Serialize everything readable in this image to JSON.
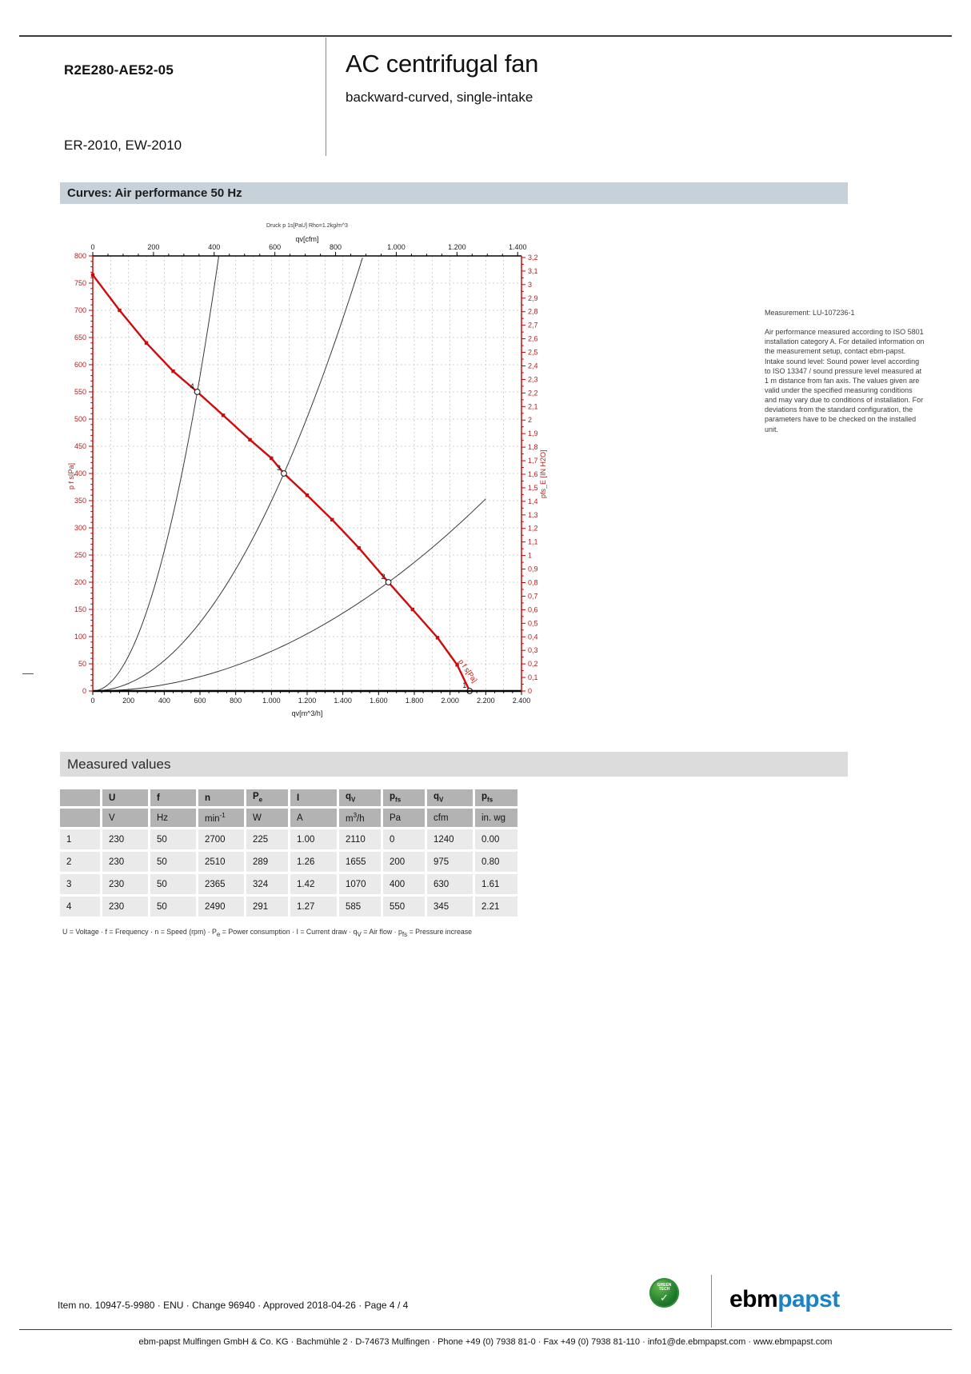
{
  "header": {
    "model": "R2E280-AE52-05",
    "title": "AC centrifugal fan",
    "subtitle": "backward-curved, single-intake",
    "series": "ER-2010, EW-2010"
  },
  "sections": {
    "curves_title": "Curves: Air performance 50 Hz",
    "measured_title": "Measured values"
  },
  "chart_data": {
    "type": "line",
    "title": "Druck p 1s[PaU]  Rho=1.2kg/m^3",
    "top_axis": {
      "label": "qv[cfm]",
      "min": 0,
      "max": 1400,
      "tick_step": 200,
      "minor_step": 50,
      "cfm_to_m3h": 1.699
    },
    "bottom_axis": {
      "label": "qv[m^3/h]",
      "min": 0,
      "max": 2400,
      "tick_step": 200,
      "minor_step": 50
    },
    "left_axis": {
      "label": "p f s[Pa]",
      "min": 0,
      "max": 800,
      "tick_step": 50,
      "minor_step": 10
    },
    "right_axis": {
      "label": "pfs_E [IN H2O]",
      "min": 0,
      "max": 3.2,
      "tick_step": 0.1,
      "minor_step": 0.05,
      "pa_per_unit": 249.089
    },
    "grid": {
      "x_step": 100,
      "y_step": 50,
      "style": "dashed"
    },
    "fan_curve": {
      "label": "p f s[Pa]",
      "color": "#cf0a0a",
      "points": [
        [
          0,
          765
        ],
        [
          150,
          700
        ],
        [
          300,
          640
        ],
        [
          450,
          588
        ],
        [
          585,
          550
        ],
        [
          730,
          507
        ],
        [
          880,
          462
        ],
        [
          1000,
          428
        ],
        [
          1070,
          400
        ],
        [
          1200,
          360
        ],
        [
          1340,
          315
        ],
        [
          1490,
          263
        ],
        [
          1655,
          200
        ],
        [
          1790,
          150
        ],
        [
          1930,
          98
        ],
        [
          2040,
          48
        ],
        [
          2110,
          0
        ]
      ]
    },
    "system_curves": [
      {
        "k": 0.0016073,
        "qv_end": 705
      },
      {
        "k": 0.00034938,
        "qv_end": 1510
      },
      {
        "k": 7.3019e-05,
        "qv_end": 2200
      }
    ],
    "operating_points": [
      {
        "label": "1",
        "qv": 2110,
        "p": 0
      },
      {
        "label": "2",
        "qv": 1655,
        "p": 200
      },
      {
        "label": "3",
        "qv": 1070,
        "p": 400
      },
      {
        "label": "4",
        "qv": 585,
        "p": 550
      }
    ]
  },
  "measurement_note": {
    "line1": "Measurement: LU-107236-1",
    "body": "Air performance measured according to ISO 5801 installation category A. For detailed information on the measurement setup, contact ebm-papst. Intake sound level: Sound power level according to ISO 13347 / sound pressure level measured at 1 m distance from fan axis. The values given are valid under the specified measuring conditions and may vary due to conditions of installation. For deviations from the standard configuration, the parameters have to be checked on the installed unit."
  },
  "table": {
    "headers": [
      "",
      "U",
      "f",
      "n",
      "P_e",
      "I",
      "q_V",
      "p_fs",
      "q_V",
      "p_fs"
    ],
    "units": [
      "",
      "V",
      "Hz",
      "min^-1",
      "W",
      "A",
      "m^3/h",
      "Pa",
      "cfm",
      "in. wg"
    ],
    "rows": [
      [
        "1",
        "230",
        "50",
        "2700",
        "225",
        "1.00",
        "2110",
        "0",
        "1240",
        "0.00"
      ],
      [
        "2",
        "230",
        "50",
        "2510",
        "289",
        "1.26",
        "1655",
        "200",
        "975",
        "0.80"
      ],
      [
        "3",
        "230",
        "50",
        "2365",
        "324",
        "1.42",
        "1070",
        "400",
        "630",
        "1.61"
      ],
      [
        "4",
        "230",
        "50",
        "2490",
        "291",
        "1.27",
        "585",
        "550",
        "345",
        "2.21"
      ]
    ],
    "footnote": "U = Voltage · f = Frequency · n = Speed (rpm) · P_e = Power consumption · I = Current draw · q_V = Air flow · p_fs = Pressure increase"
  },
  "footer": {
    "item_line": "Item no. 10947-5-9980 · ENU · Change 96940 · Approved 2018-04-26 · Page 4 / 4",
    "address": "ebm-papst Mulfingen GmbH & Co. KG · Bachmühle 2 · D-74673 Mulfingen · Phone +49 (0) 7938 81-0 · Fax +49 (0) 7938 81-110 · info1@de.ebmpapst.com · www.ebmpapst.com",
    "logo": {
      "black_part": "ebm",
      "blue_part": "papst",
      "blue_color": "#1b82c5"
    },
    "badge_label": "GREEN TECH"
  }
}
